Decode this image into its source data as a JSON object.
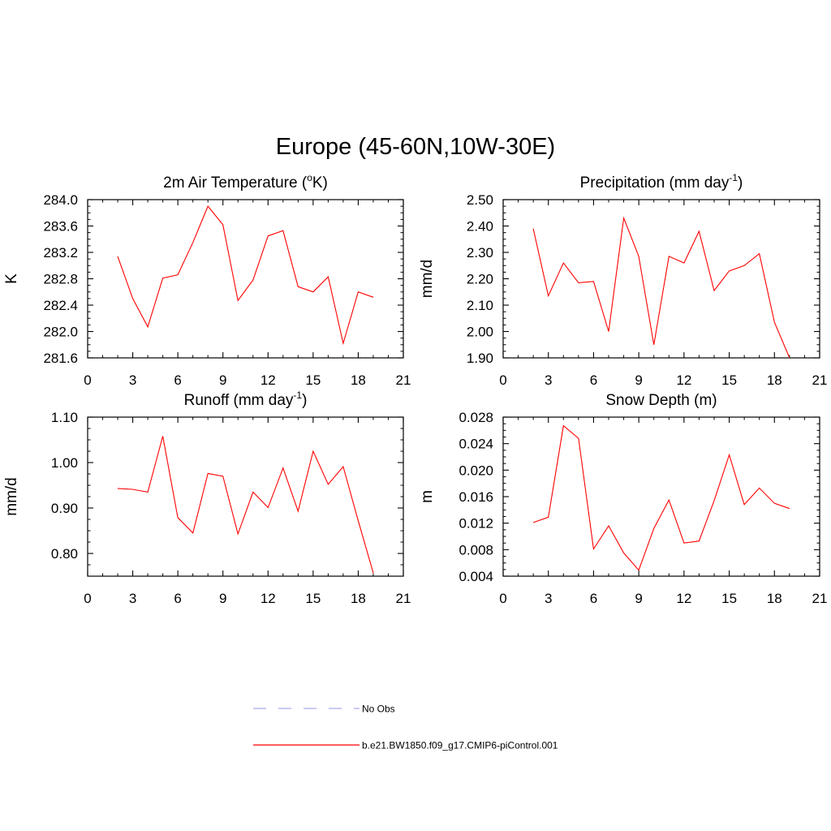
{
  "title": "Europe (45-60N,10W-30E)",
  "legend": [
    {
      "label": "No Obs",
      "style": "dashed",
      "color": "#aaaaee"
    },
    {
      "label": "b.e21.BW1850.f09_g17.CMIP6-piControl.001",
      "style": "solid",
      "color": "#ff0000"
    }
  ],
  "line_color": "#ff0000",
  "chart_data": [
    {
      "type": "line",
      "title": "2m Air Temperature (",
      "title_sup": "o",
      "title_after": "K)",
      "ylabel": "K",
      "xlabel": "",
      "xlim": [
        0,
        21
      ],
      "ylim": [
        281.6,
        284.0
      ],
      "x_ticks": [
        "0",
        "3",
        "6",
        "9",
        "12",
        "15",
        "18",
        "21"
      ],
      "y_ticks": [
        "281.6",
        "282.0",
        "282.4",
        "282.8",
        "283.2",
        "283.6",
        "284.0"
      ],
      "x": [
        2,
        3,
        4,
        5,
        6,
        7,
        8,
        9,
        10,
        11,
        12,
        13,
        14,
        15,
        16,
        17,
        18,
        19
      ],
      "series": [
        {
          "name": "b.e21.BW1850.f09_g17.CMIP6-piControl.001",
          "values": [
            283.14,
            282.5,
            282.07,
            282.81,
            282.86,
            283.35,
            283.9,
            283.62,
            282.47,
            282.78,
            283.45,
            283.53,
            282.68,
            282.6,
            282.83,
            281.82,
            282.6,
            282.52
          ]
        }
      ]
    },
    {
      "type": "line",
      "title": "Precipitation (mm day",
      "title_sup": "-1",
      "title_after": ")",
      "ylabel": "mm/d",
      "xlabel": "",
      "xlim": [
        0,
        21
      ],
      "ylim": [
        1.9,
        2.5
      ],
      "x_ticks": [
        "0",
        "3",
        "6",
        "9",
        "12",
        "15",
        "18",
        "21"
      ],
      "y_ticks": [
        "1.90",
        "2.00",
        "2.10",
        "2.20",
        "2.30",
        "2.40",
        "2.50"
      ],
      "x": [
        2,
        3,
        4,
        5,
        6,
        7,
        8,
        9,
        10,
        11,
        12,
        13,
        14,
        15,
        16,
        17,
        18,
        19
      ],
      "series": [
        {
          "name": "b.e21.BW1850.f09_g17.CMIP6-piControl.001",
          "values": [
            2.39,
            2.135,
            2.26,
            2.185,
            2.19,
            2.0,
            2.43,
            2.285,
            1.95,
            2.285,
            2.26,
            2.38,
            2.155,
            2.23,
            2.25,
            2.295,
            2.035,
            1.9
          ]
        }
      ]
    },
    {
      "type": "line",
      "title": "Runoff (mm day",
      "title_sup": "-1",
      "title_after": ")",
      "ylabel": "mm/d",
      "xlabel": "",
      "xlim": [
        0,
        21
      ],
      "ylim": [
        0.75,
        1.1
      ],
      "x_ticks": [
        "0",
        "3",
        "6",
        "9",
        "12",
        "15",
        "18",
        "21"
      ],
      "y_ticks": [
        "0.80",
        "0.90",
        "1.00",
        "1.10"
      ],
      "y_tick_values": [
        0.8,
        0.9,
        1.0,
        1.1
      ],
      "x": [
        2,
        3,
        4,
        5,
        6,
        7,
        8,
        9,
        10,
        11,
        12,
        13,
        14,
        15,
        16,
        17,
        18,
        19
      ],
      "series": [
        {
          "name": "b.e21.BW1850.f09_g17.CMIP6-piControl.001",
          "values": [
            0.943,
            0.941,
            0.935,
            1.058,
            0.879,
            0.845,
            0.976,
            0.97,
            0.843,
            0.935,
            0.901,
            0.988,
            0.893,
            1.025,
            0.952,
            0.991,
            0.872,
            0.757
          ]
        }
      ]
    },
    {
      "type": "line",
      "title": "Snow Depth (m)",
      "title_sup": "",
      "title_after": "",
      "ylabel": "m",
      "xlabel": "",
      "xlim": [
        0,
        21
      ],
      "ylim": [
        0.004,
        0.028
      ],
      "x_ticks": [
        "0",
        "3",
        "6",
        "9",
        "12",
        "15",
        "18",
        "21"
      ],
      "y_ticks": [
        "0.004",
        "0.008",
        "0.012",
        "0.016",
        "0.020",
        "0.024",
        "0.028"
      ],
      "x": [
        2,
        3,
        4,
        5,
        6,
        7,
        8,
        9,
        10,
        11,
        12,
        13,
        14,
        15,
        16,
        17,
        18,
        19
      ],
      "series": [
        {
          "name": "b.e21.BW1850.f09_g17.CMIP6-piControl.001",
          "values": [
            0.0121,
            0.0129,
            0.0267,
            0.0248,
            0.0081,
            0.0116,
            0.0075,
            0.0049,
            0.0112,
            0.0155,
            0.009,
            0.0093,
            0.0154,
            0.0223,
            0.0148,
            0.0173,
            0.015,
            0.0142
          ]
        }
      ]
    }
  ]
}
